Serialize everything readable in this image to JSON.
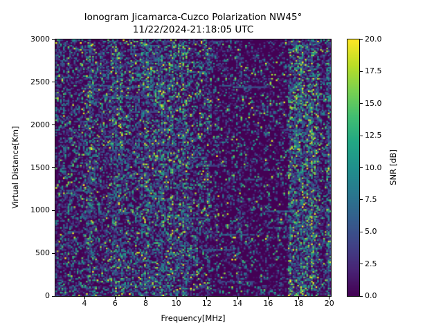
{
  "title": "Ionogram Jicamarca-Cuzco Polarization NW45°",
  "subtitle": "11/22/2024-21:18:05 UTC",
  "chart_data": {
    "type": "heatmap",
    "title": "Ionogram Jicamarca-Cuzco Polarization NW45°",
    "subtitle": "11/22/2024-21:18:05 UTC",
    "xlabel": "Frequency[MHz]",
    "ylabel": "Virtual Distance[Km]",
    "xlim": [
      2.1,
      20.1
    ],
    "ylim": [
      0,
      3000
    ],
    "xtick_values": [
      4,
      6,
      8,
      10,
      12,
      14,
      16,
      18,
      20
    ],
    "xtick_labels": [
      "4",
      "6",
      "8",
      "10",
      "12",
      "14",
      "16",
      "18",
      "20"
    ],
    "ytick_values": [
      0,
      500,
      1000,
      1500,
      2000,
      2500,
      3000
    ],
    "ytick_labels": [
      "0",
      "500",
      "1000",
      "1500",
      "2000",
      "2500",
      "3000"
    ],
    "grid": false,
    "colormap": "viridis",
    "colormap_stops": [
      [
        0.0,
        68,
        1,
        84
      ],
      [
        0.1,
        72,
        36,
        117
      ],
      [
        0.2,
        64,
        67,
        135
      ],
      [
        0.3,
        52,
        94,
        141
      ],
      [
        0.4,
        41,
        120,
        142
      ],
      [
        0.5,
        32,
        144,
        140
      ],
      [
        0.6,
        34,
        167,
        132
      ],
      [
        0.7,
        66,
        190,
        113
      ],
      [
        0.8,
        121,
        209,
        81
      ],
      [
        0.9,
        186,
        222,
        39
      ],
      [
        1.0,
        253,
        231,
        37
      ]
    ],
    "colorbar": {
      "label": "SNR [dB]",
      "min": 0,
      "max": 20,
      "tick_values": [
        0,
        2.5,
        5,
        7.5,
        10,
        12.5,
        15,
        17.5,
        20
      ],
      "tick_labels": [
        "0.0",
        "2.5",
        "5.0",
        "7.5",
        "10.0",
        "12.5",
        "15.0",
        "17.5",
        "20.0"
      ]
    },
    "content_description": "Speckled SNR noise field; background ~0 dB with random echoes. Activity density varies by frequency band; strongest interference band near 17.3-19.3 MHz, moderate bands near 4-11 MHz, quiet zone 12.3-17.3 MHz.",
    "noise_bands": [
      {
        "f0": 2.1,
        "f1": 4.1,
        "density": 0.27,
        "bright": 0.1
      },
      {
        "f0": 4.1,
        "f1": 4.7,
        "density": 0.42,
        "bright": 0.3
      },
      {
        "f0": 4.7,
        "f1": 5.7,
        "density": 0.32,
        "bright": 0.12
      },
      {
        "f0": 5.7,
        "f1": 6.5,
        "density": 0.43,
        "bright": 0.3
      },
      {
        "f0": 6.5,
        "f1": 7.7,
        "density": 0.36,
        "bright": 0.2
      },
      {
        "f0": 7.7,
        "f1": 9.0,
        "density": 0.44,
        "bright": 0.35
      },
      {
        "f0": 9.0,
        "f1": 10.8,
        "density": 0.45,
        "bright": 0.45
      },
      {
        "f0": 10.8,
        "f1": 11.9,
        "density": 0.3,
        "bright": 0.2
      },
      {
        "f0": 11.9,
        "f1": 12.3,
        "density": 0.34,
        "bright": 0.15
      },
      {
        "f0": 12.3,
        "f1": 13.9,
        "density": 0.17,
        "bright": 0.15
      },
      {
        "f0": 13.9,
        "f1": 14.3,
        "density": 0.24,
        "bright": 0.15
      },
      {
        "f0": 14.3,
        "f1": 17.3,
        "density": 0.14,
        "bright": 0.15
      },
      {
        "f0": 17.3,
        "f1": 19.3,
        "density": 0.52,
        "bright": 0.55
      },
      {
        "f0": 19.3,
        "f1": 19.8,
        "density": 0.26,
        "bright": 0.2
      },
      {
        "f0": 19.8,
        "f1": 20.1,
        "density": 0.45,
        "bright": 0.3
      }
    ],
    "accent_columns": [
      4.35,
      6.05,
      8.1,
      9.05,
      10.45,
      12.05,
      17.45,
      18.2,
      18.85,
      19.95
    ],
    "seed": 1337
  }
}
